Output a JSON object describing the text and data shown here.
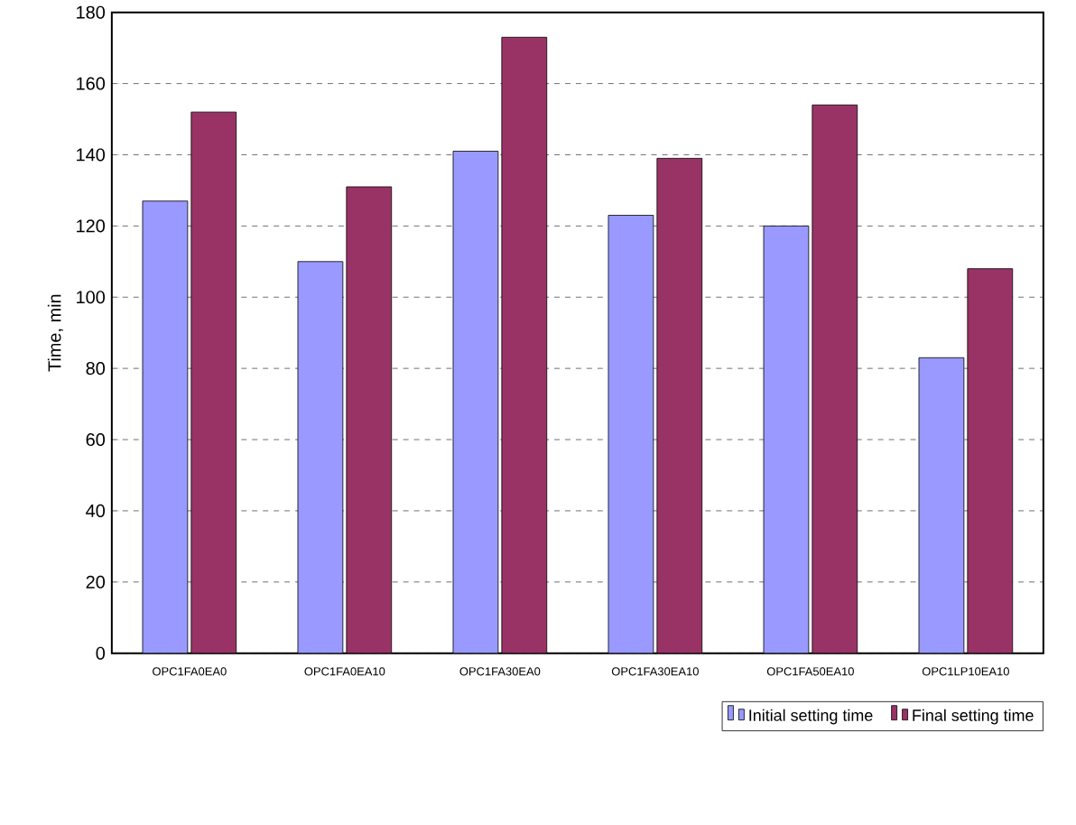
{
  "chart_data": {
    "type": "bar",
    "ylabel": "Time, min",
    "categories": [
      "OPC1FA0EA0",
      "OPC1FA0EA10",
      "OPC1FA30EA0",
      "OPC1FA30EA10",
      "OPC1FA50EA10",
      "OPC1LP10EA10"
    ],
    "series": [
      {
        "name": "Initial setting time",
        "color": "#9999ff",
        "values": [
          127,
          110,
          141,
          123,
          120,
          83
        ]
      },
      {
        "name": "Final setting time",
        "color": "#993366",
        "values": [
          152,
          131,
          173,
          139,
          154,
          108
        ]
      }
    ],
    "ylim": [
      0,
      180
    ],
    "yticks": [
      0,
      20,
      40,
      60,
      80,
      100,
      120,
      140,
      160,
      180
    ],
    "grid": "y",
    "legend": "bottom right"
  }
}
